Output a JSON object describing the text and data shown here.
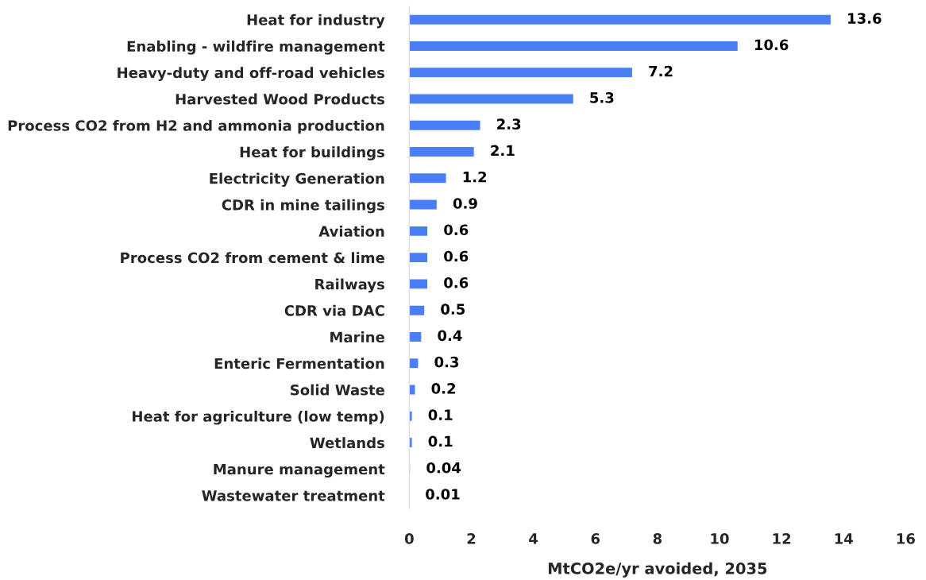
{
  "chart_data": {
    "type": "bar",
    "orientation": "horizontal",
    "xlabel": "MtCO2e/yr avoided, 2035",
    "categories": [
      "Heat for industry",
      "Enabling - wildfire management",
      "Heavy-duty and off-road vehicles",
      "Harvested Wood Products",
      "Process CO2 from H2 and ammonia production",
      "Heat for buildings",
      "Electricity Generation",
      "CDR in mine tailings",
      "Aviation",
      "Process CO2 from cement & lime",
      "Railways",
      "CDR via DAC",
      "Marine",
      "Enteric Fermentation",
      "Solid Waste",
      "Heat for agriculture (low temp)",
      "Wetlands",
      "Manure management",
      "Wastewater treatment"
    ],
    "values": [
      13.6,
      10.6,
      7.2,
      5.3,
      2.3,
      2.1,
      1.2,
      0.9,
      0.6,
      0.6,
      0.6,
      0.5,
      0.4,
      0.3,
      0.2,
      0.1,
      0.1,
      0.04,
      0.01
    ],
    "color": "#4a7ef5",
    "xlim": [
      0,
      16
    ],
    "xticks": [
      0,
      2,
      4,
      6,
      8,
      10,
      12,
      14,
      16
    ],
    "data_labels": true,
    "grid": false,
    "legend": false
  }
}
